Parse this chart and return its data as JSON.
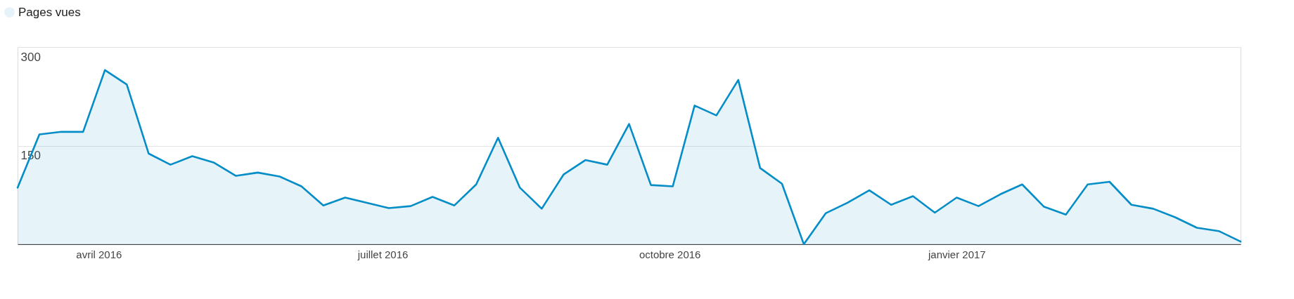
{
  "chart_data": {
    "type": "area",
    "legend": "top left",
    "grid": "y",
    "marker": "none",
    "line_style": "solid",
    "x": [
      "2016-03-06",
      "2016-03-13",
      "2016-03-20",
      "2016-03-27",
      "2016-04-03",
      "2016-04-10",
      "2016-04-17",
      "2016-04-24",
      "2016-05-01",
      "2016-05-08",
      "2016-05-15",
      "2016-05-22",
      "2016-05-29",
      "2016-06-05",
      "2016-06-12",
      "2016-06-19",
      "2016-06-26",
      "2016-07-03",
      "2016-07-10",
      "2016-07-17",
      "2016-07-24",
      "2016-07-31",
      "2016-08-07",
      "2016-08-14",
      "2016-08-21",
      "2016-08-28",
      "2016-09-04",
      "2016-09-11",
      "2016-09-18",
      "2016-09-25",
      "2016-10-02",
      "2016-10-09",
      "2016-10-16",
      "2016-10-23",
      "2016-10-30",
      "2016-11-06",
      "2016-11-13",
      "2016-11-20",
      "2016-11-27",
      "2016-12-04",
      "2016-12-11",
      "2016-12-18",
      "2016-12-25",
      "2017-01-01",
      "2017-01-08",
      "2017-01-15",
      "2017-01-22",
      "2017-01-29",
      "2017-02-05",
      "2017-02-12",
      "2017-02-19",
      "2017-02-26",
      "2017-03-05",
      "2017-03-12",
      "2017-03-19",
      "2017-03-26",
      "2017-04-02"
    ],
    "series": [
      {
        "name": "Pages vues",
        "color": "#058dc7",
        "values": [
          86,
          167,
          171,
          171,
          265,
          243,
          138,
          121,
          134,
          124,
          104,
          109,
          103,
          88,
          59,
          71,
          63,
          55,
          58,
          72,
          59,
          91,
          162,
          86,
          54,
          106,
          128,
          121,
          183,
          90,
          88,
          211,
          196,
          250,
          116,
          92,
          0,
          47,
          63,
          82,
          60,
          73,
          48,
          71,
          58,
          76,
          91,
          57,
          45,
          91,
          95,
          60,
          54,
          41,
          25,
          20,
          4
        ]
      }
    ],
    "xlim": [
      "2016-03-06",
      "2017-04-02"
    ],
    "xticks": [
      {
        "value": "2016-04-01",
        "label": "avril 2016"
      },
      {
        "value": "2016-07-01",
        "label": "juillet 2016"
      },
      {
        "value": "2016-10-01",
        "label": "octobre 2016"
      },
      {
        "value": "2017-01-01",
        "label": "janvier 2017"
      }
    ],
    "ylim": [
      0,
      300
    ],
    "yticks": [
      {
        "value": 0,
        "label": null
      },
      150,
      300
    ]
  }
}
